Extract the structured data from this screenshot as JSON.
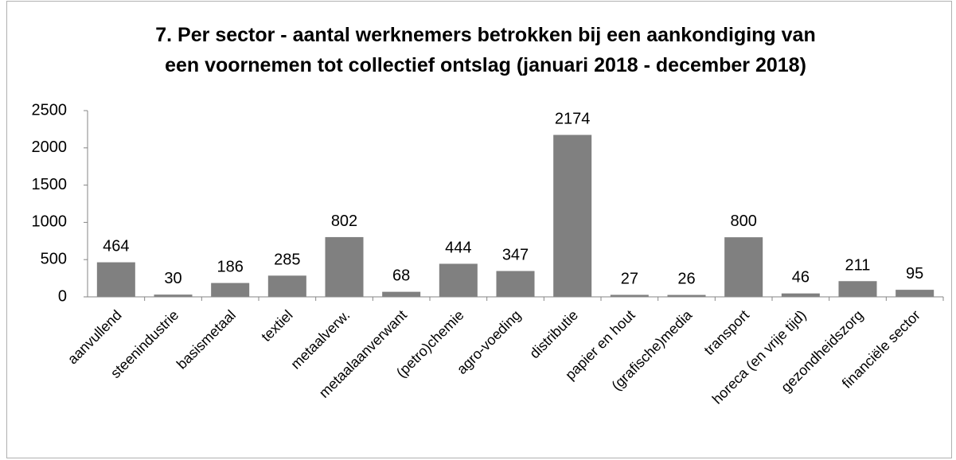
{
  "chart_data": {
    "type": "bar",
    "title": [
      "7. Per sector - aantal werknemers betrokken bij een aankondiging van",
      "een voornemen tot collectief ontslag (januari 2018 - december 2018)"
    ],
    "categories": [
      "aanvullend",
      "steenindustrie",
      "basismetaal",
      "textiel",
      "metaalverw.",
      "metaalaanverwant",
      "(petro)chemie",
      "agro-voeding",
      "distributie",
      "papier en hout",
      "(grafische)media",
      "transport",
      "horeca (en vrije tijd)",
      "gezondheidszorg",
      "financiële sector"
    ],
    "values": [
      464,
      30,
      186,
      285,
      802,
      68,
      444,
      347,
      2174,
      27,
      26,
      800,
      46,
      211,
      95
    ],
    "color": "#808080",
    "ylim": [
      0,
      2500
    ],
    "yticks": [
      0,
      500,
      1000,
      1500,
      2000,
      2500
    ],
    "grid": false
  }
}
